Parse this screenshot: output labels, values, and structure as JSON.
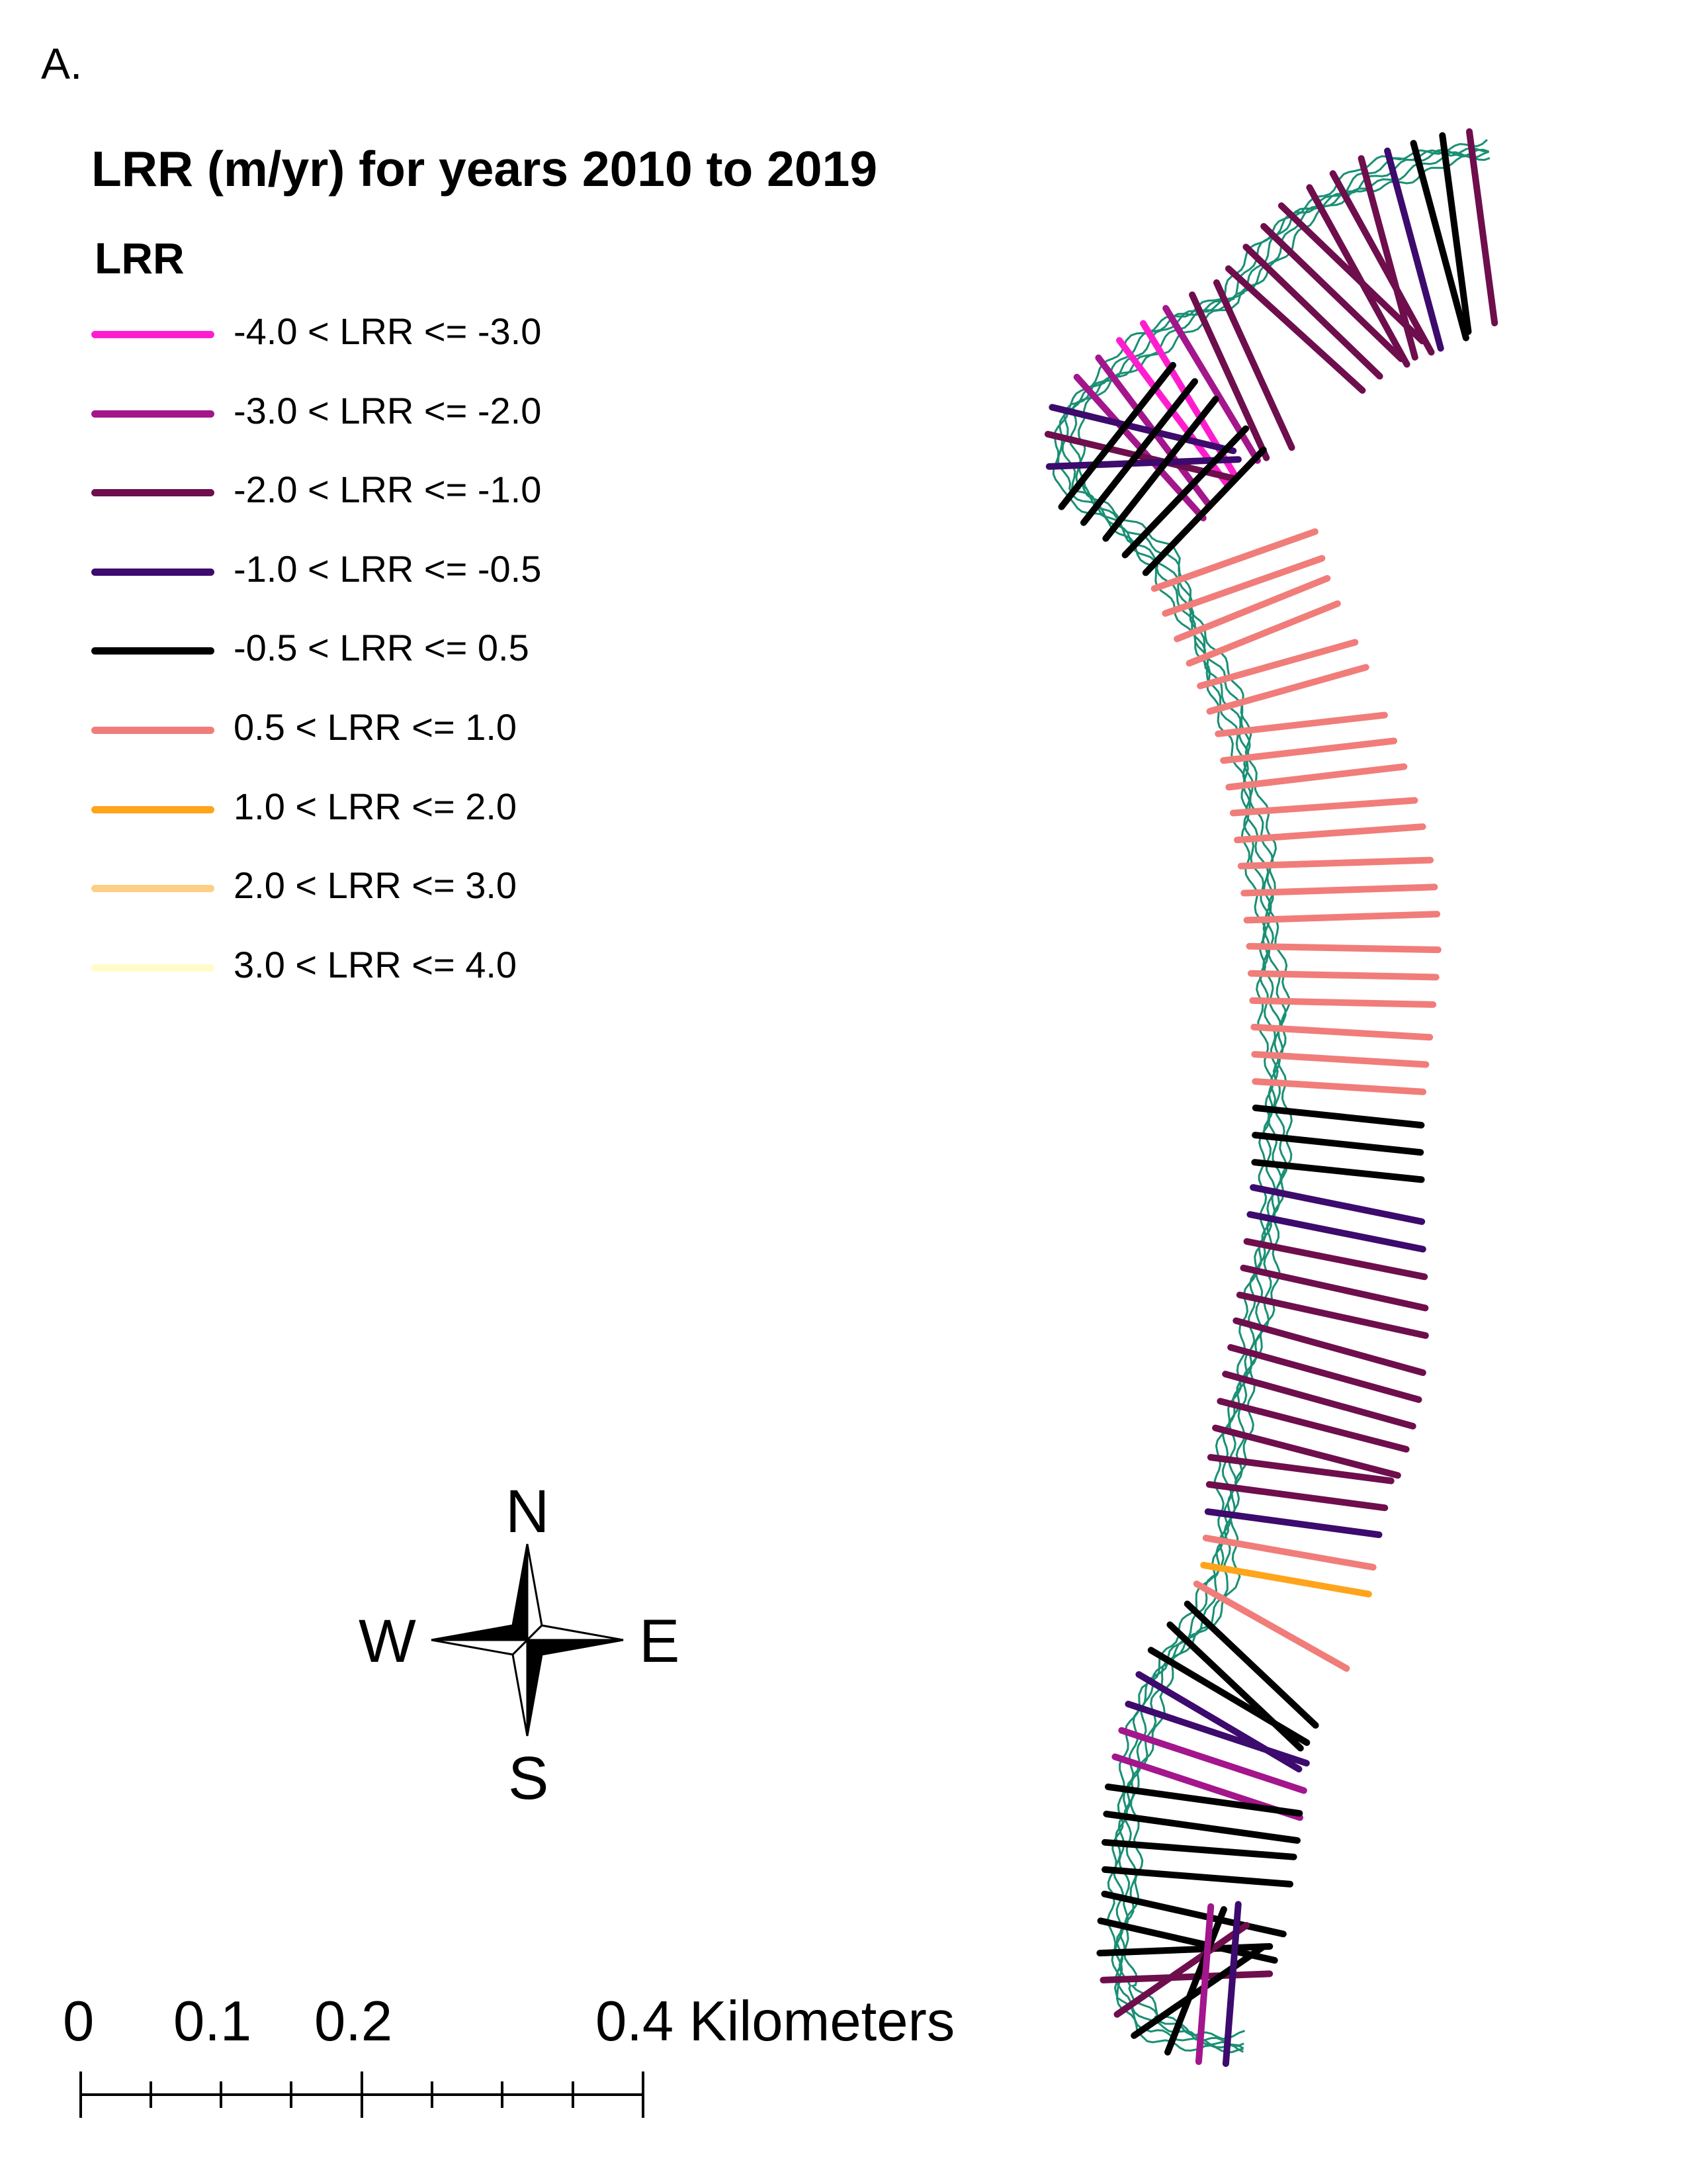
{
  "panel_label": "A.",
  "legend": {
    "title": "LRR (m/yr) for years 2010 to 2019",
    "subtitle": "LRR",
    "classes": [
      {
        "label": "-4.0 < LRR <= -3.0",
        "color": "#ff1ecf"
      },
      {
        "label": "-3.0 < LRR <= -2.0",
        "color": "#a3168c"
      },
      {
        "label": "-2.0 < LRR <= -1.0",
        "color": "#6e0e4c"
      },
      {
        "label": "-1.0 < LRR <= -0.5",
        "color": "#3d0a6d"
      },
      {
        "label": "-0.5 < LRR <= 0.5",
        "color": "#000000"
      },
      {
        "label": "0.5 < LRR <= 1.0",
        "color": "#f07d7a"
      },
      {
        "label": "1.0 < LRR <= 2.0",
        "color": "#ffa41b"
      },
      {
        "label": "2.0 < LRR <= 3.0",
        "color": "#fccf85"
      },
      {
        "label": "3.0 < LRR <= 4.0",
        "color": "#fffcc9"
      }
    ]
  },
  "shoreline_color": "#1a8f74",
  "compass": {
    "n": "N",
    "s": "S",
    "e": "E",
    "w": "W"
  },
  "scale_bar": {
    "labels": [
      "0",
      "0.1",
      "0.2",
      "0.4 Kilometers"
    ]
  },
  "map": {
    "transect_classes_north_to_south": [
      2,
      4,
      4,
      3,
      2,
      2,
      2,
      2,
      2,
      2,
      2,
      2,
      2,
      1,
      0,
      0,
      1,
      1,
      3,
      2,
      3,
      4,
      4,
      4,
      4,
      4,
      5,
      5,
      5,
      5,
      5,
      5,
      5,
      5,
      5,
      5,
      5,
      5,
      5,
      5,
      5,
      5,
      5,
      5,
      5,
      5,
      4,
      4,
      4,
      3,
      3,
      2,
      2,
      2,
      2,
      2,
      2,
      2,
      2,
      2,
      2,
      3,
      5,
      6,
      5,
      4,
      4,
      4,
      3,
      3,
      1,
      1,
      4,
      4,
      4,
      4,
      4,
      4,
      4,
      2,
      2,
      4,
      4,
      1,
      3
    ]
  }
}
